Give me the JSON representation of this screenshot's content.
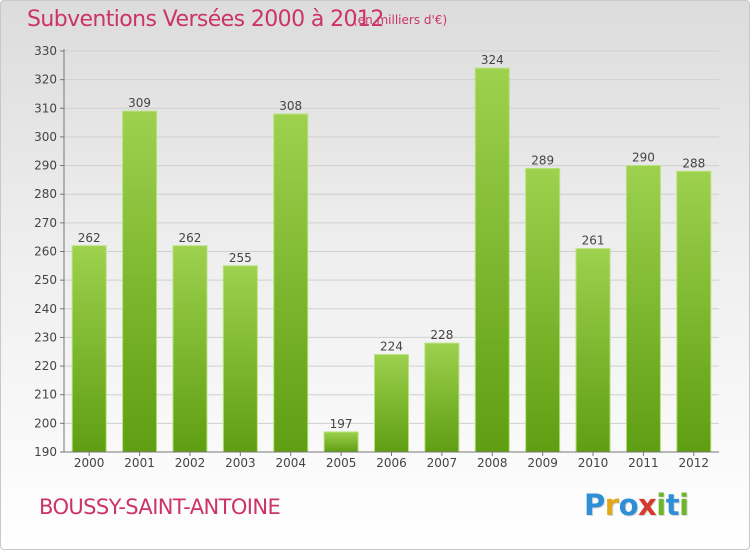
{
  "header": {
    "title": "Subventions Versées 2000 à 2012",
    "subtitle": "(en milliers d'€)"
  },
  "footer": {
    "city": "BOUSSY-SAINT-ANTOINE",
    "logo": {
      "letters": [
        "P",
        "r",
        "o",
        "x",
        "i",
        "t",
        "i"
      ],
      "colors": [
        "#2f8fd6",
        "#e2a81c",
        "#2f8fd6",
        "#d63a2f",
        "#6fb52c",
        "#2f8fd6",
        "#6fb52c"
      ]
    }
  },
  "colors": {
    "bar_light": "#9dd14e",
    "bar_dark": "#5f9e12",
    "accent": "#cc3366",
    "grid": "#cfcfcf"
  },
  "chart_data": {
    "type": "bar",
    "categories": [
      "2000",
      "2001",
      "2002",
      "2003",
      "2004",
      "2005",
      "2006",
      "2007",
      "2008",
      "2009",
      "2010",
      "2011",
      "2012"
    ],
    "values": [
      262,
      309,
      262,
      255,
      308,
      197,
      224,
      228,
      324,
      289,
      261,
      290,
      288
    ],
    "data_labels": [
      "262",
      "309",
      "262",
      "255",
      "308",
      "197",
      "224",
      "228",
      "324",
      "289",
      "261",
      "290",
      "288"
    ],
    "yticks": [
      190,
      200,
      210,
      220,
      230,
      240,
      250,
      260,
      270,
      280,
      290,
      300,
      310,
      320,
      330
    ],
    "ylim": [
      190,
      330
    ],
    "grid": true,
    "legend": "none"
  }
}
